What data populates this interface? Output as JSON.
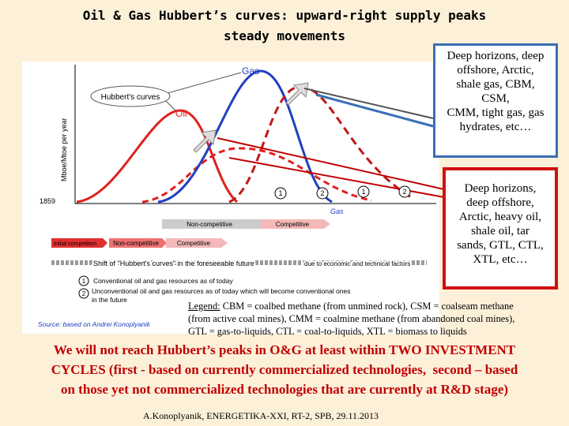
{
  "slide": {
    "title": [
      "Oil & Gas Hubbert’s curves: upward-right supply peaks",
      "steady movements"
    ],
    "gas_box": [
      "Deep horizons, deep",
      "offshore, Arctic,",
      "shale gas, CBM,",
      "CSM,",
      "CMM, tight gas, gas",
      "hydrates, etc…"
    ],
    "oil_box": [
      "Deep horizons,",
      "deep offshore,",
      "Arctic, heavy oil,",
      "shale oil, tar",
      "sands, GTL, CTL,",
      "XTL, etc…"
    ],
    "legend_label": "Legend:",
    "legend_lines": [
      " CBM = coalbed methane (from unmined rock), CSM = coalseam methane",
      "(from active coal mines), CMM = coalmine methane (from abandoned coal mines),",
      "GTL = gas-to-liquids, CTL = coal-to-liquids, XTL = biomass to liquids"
    ],
    "conclusion": [
      "We will not reach Hubbert’s peaks in O&G at least within TWO INVESTMENT",
      "CYCLES (first - based on currently commercialized technologies,  second – based",
      "on those yet not commercialized technologies that are currently at R&D stage)"
    ],
    "footer": "A.Konoplyanik, ENERGETIKA-XXI, RT-2, SPB, 29.11.2013"
  },
  "diagram": {
    "y_axis_label": "Mboe/Mtoe per year",
    "start_year": "1859",
    "gas_label": "Gas",
    "oil_label": "Oil",
    "hubbert_label": "Hubbert's curves",
    "markers": [
      "1",
      "2",
      "1",
      "2"
    ],
    "gas_axis_label": "Gas",
    "gas_bands": [
      "Non-competitive",
      "Competitive"
    ],
    "oil_bands": [
      "Initial competition",
      "Non-competitive",
      "Competitive"
    ],
    "shift_text": "Shift of \"Hubbert's curves\" in the foreseeable future",
    "factors_text": "due to economic and technical factors",
    "key": [
      {
        "marker": "1",
        "text": "Conventional oil and gas resources as of today"
      },
      {
        "marker": "2",
        "text": "Unconventional oil and gas resources as of today which will become conventional ones in the future"
      }
    ],
    "source": "Source: based on Andrei Konoplyanik"
  }
}
